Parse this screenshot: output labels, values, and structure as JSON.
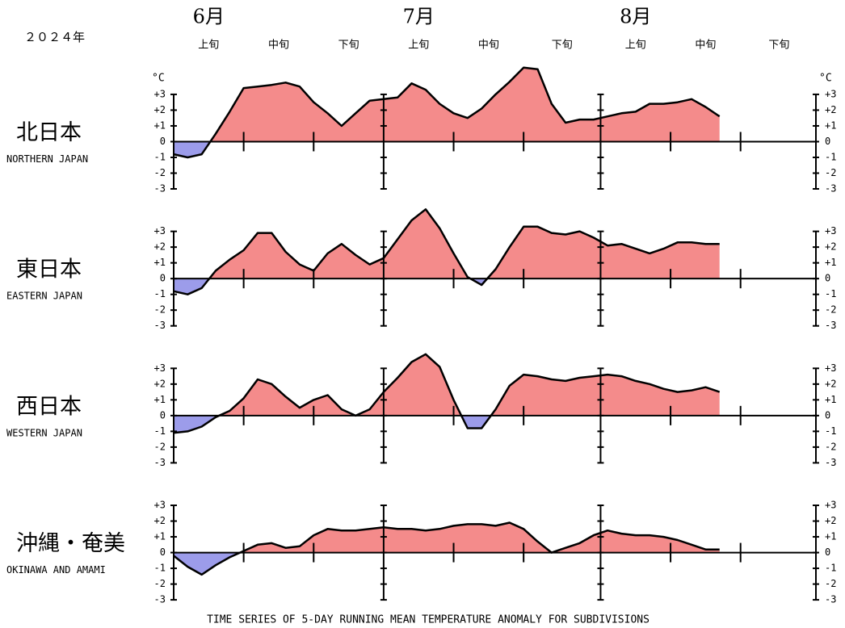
{
  "year_label": "２０２４年",
  "months": [
    "6月",
    "7月",
    "8月"
  ],
  "dekads": [
    "上旬",
    "中旬",
    "下旬",
    "上旬",
    "中旬",
    "下旬",
    "上旬",
    "中旬",
    "下旬"
  ],
  "unit": "°C",
  "footnote": "TIME SERIES OF 5-DAY RUNNING MEAN TEMPERATURE ANOMALY FOR SUBDIVISIONS",
  "chart_data": [
    {
      "type": "area",
      "title": "北日本",
      "subtitle": "NORTHERN JAPAN",
      "positive_color": "#f48b8b",
      "negative_color": "#9c9cea",
      "xlim": [
        0,
        92
      ],
      "xticks": [
        0,
        10,
        20,
        30,
        40,
        50,
        61,
        71,
        81,
        92
      ],
      "ylim": [
        -3,
        5.2
      ],
      "yticks": [
        {
          "value": 3,
          "label": "+3"
        },
        {
          "value": 2,
          "label": "+2"
        },
        {
          "value": 1,
          "label": "+1"
        },
        0,
        -1,
        -2,
        -3
      ],
      "x": [
        0,
        2,
        4,
        6,
        8,
        10,
        12,
        14,
        16,
        18,
        20,
        22,
        24,
        26,
        28,
        30,
        32,
        34,
        36,
        38,
        40,
        42,
        44,
        46,
        48,
        50,
        52,
        54,
        56,
        58,
        60,
        62,
        64,
        66,
        68,
        70,
        72,
        74,
        76,
        78
      ],
      "values": [
        -0.8,
        -1.0,
        -0.8,
        0.5,
        1.9,
        3.4,
        3.5,
        3.6,
        3.75,
        3.5,
        2.5,
        1.8,
        1.0,
        1.8,
        2.6,
        2.7,
        2.8,
        3.7,
        3.3,
        2.4,
        1.8,
        1.5,
        2.1,
        3.0,
        3.8,
        4.7,
        4.6,
        2.4,
        1.2,
        1.4,
        1.4,
        1.6,
        1.8,
        1.9,
        2.4,
        2.4,
        2.5,
        2.7,
        2.2,
        1.6
      ]
    },
    {
      "type": "area",
      "title": "東日本",
      "subtitle": "EASTERN JAPAN",
      "positive_color": "#f48b8b",
      "negative_color": "#9c9cea",
      "xlim": [
        0,
        92
      ],
      "xticks": [
        0,
        10,
        20,
        30,
        40,
        50,
        61,
        71,
        81,
        92
      ],
      "ylim": [
        -3,
        5.2
      ],
      "yticks": [
        {
          "value": 3,
          "label": "+3"
        },
        {
          "value": 2,
          "label": "+2"
        },
        {
          "value": 1,
          "label": "+1"
        },
        0,
        -1,
        -2,
        -3
      ],
      "x": [
        0,
        2,
        4,
        6,
        8,
        10,
        12,
        14,
        16,
        18,
        20,
        22,
        24,
        26,
        28,
        30,
        32,
        34,
        36,
        38,
        40,
        42,
        44,
        46,
        48,
        50,
        52,
        54,
        56,
        58,
        60,
        62,
        64,
        66,
        68,
        70,
        72,
        74,
        76,
        78
      ],
      "values": [
        -0.8,
        -1.0,
        -0.6,
        0.5,
        1.2,
        1.8,
        2.9,
        2.9,
        1.7,
        0.9,
        0.5,
        1.6,
        2.2,
        1.5,
        0.9,
        1.3,
        2.5,
        3.7,
        4.4,
        3.2,
        1.6,
        0.1,
        -0.4,
        0.6,
        2.0,
        3.3,
        3.3,
        2.9,
        2.8,
        3.0,
        2.6,
        2.1,
        2.2,
        1.9,
        1.6,
        1.9,
        2.3,
        2.3,
        2.2,
        2.2
      ]
    },
    {
      "type": "area",
      "title": "西日本",
      "subtitle": "WESTERN JAPAN",
      "positive_color": "#f48b8b",
      "negative_color": "#9c9cea",
      "xlim": [
        0,
        92
      ],
      "xticks": [
        0,
        10,
        20,
        30,
        40,
        50,
        61,
        71,
        81,
        92
      ],
      "ylim": [
        -3,
        5.2
      ],
      "yticks": [
        {
          "value": 3,
          "label": "+3"
        },
        {
          "value": 2,
          "label": "+2"
        },
        {
          "value": 1,
          "label": "+1"
        },
        0,
        -1,
        -2,
        -3
      ],
      "x": [
        0,
        2,
        4,
        6,
        8,
        10,
        12,
        14,
        16,
        18,
        20,
        22,
        24,
        26,
        28,
        30,
        32,
        34,
        36,
        38,
        40,
        42,
        44,
        46,
        48,
        50,
        52,
        54,
        56,
        58,
        60,
        62,
        64,
        66,
        68,
        70,
        72,
        74,
        76,
        78
      ],
      "values": [
        -1.1,
        -1.0,
        -0.7,
        -0.1,
        0.3,
        1.1,
        2.3,
        2.0,
        1.2,
        0.5,
        1.0,
        1.3,
        0.4,
        0.0,
        0.4,
        1.5,
        2.4,
        3.4,
        3.9,
        3.1,
        1.0,
        -0.8,
        -0.8,
        0.4,
        1.9,
        2.6,
        2.5,
        2.3,
        2.2,
        2.4,
        2.5,
        2.6,
        2.5,
        2.2,
        2.0,
        1.7,
        1.5,
        1.6,
        1.8,
        1.5
      ]
    },
    {
      "type": "area",
      "title": "沖縄・奄美",
      "subtitle": "OKINAWA AND AMAMI",
      "positive_color": "#f48b8b",
      "negative_color": "#9c9cea",
      "xlim": [
        0,
        92
      ],
      "xticks": [
        0,
        10,
        20,
        30,
        40,
        50,
        61,
        71,
        81,
        92
      ],
      "ylim": [
        -3,
        5.2
      ],
      "yticks": [
        {
          "value": 3,
          "label": "+3"
        },
        {
          "value": 2,
          "label": "+2"
        },
        {
          "value": 1,
          "label": "+1"
        },
        0,
        -1,
        -2,
        -3
      ],
      "x": [
        0,
        2,
        4,
        6,
        8,
        10,
        12,
        14,
        16,
        18,
        20,
        22,
        24,
        26,
        28,
        30,
        32,
        34,
        36,
        38,
        40,
        42,
        44,
        46,
        48,
        50,
        52,
        54,
        56,
        58,
        60,
        62,
        64,
        66,
        68,
        70,
        72,
        74,
        76,
        78
      ],
      "values": [
        -0.2,
        -0.9,
        -1.4,
        -0.8,
        -0.3,
        0.1,
        0.5,
        0.6,
        0.3,
        0.4,
        1.1,
        1.5,
        1.4,
        1.4,
        1.5,
        1.6,
        1.5,
        1.5,
        1.4,
        1.5,
        1.7,
        1.8,
        1.8,
        1.7,
        1.9,
        1.5,
        0.7,
        0.0,
        0.3,
        0.6,
        1.1,
        1.4,
        1.2,
        1.1,
        1.1,
        1.0,
        0.8,
        0.5,
        0.2,
        0.2
      ]
    }
  ]
}
